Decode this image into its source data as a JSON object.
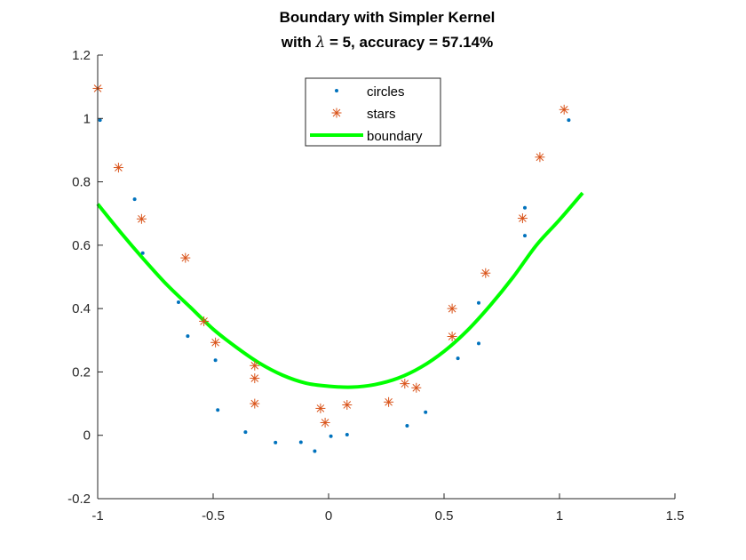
{
  "chart_data": {
    "type": "scatter",
    "title": "Boundary with Simpler Kernel",
    "subtitle_prefix": "with ",
    "subtitle_symbol": "λ",
    "subtitle_suffix": " =  5, accuracy = 57.14%",
    "xlabel": "",
    "ylabel": "",
    "xlim": [
      -1,
      1.5
    ],
    "ylim": [
      -0.2,
      1.2
    ],
    "xticks": [
      -1,
      -0.5,
      0,
      0.5,
      1,
      1.5
    ],
    "xtick_labels": [
      "-1",
      "-0.5",
      "0",
      "0.5",
      "1",
      "1.5"
    ],
    "yticks": [
      -0.2,
      0,
      0.2,
      0.4,
      0.6,
      0.8,
      1,
      1.2
    ],
    "ytick_labels": [
      "-0.2",
      "0",
      "0.2",
      "0.4",
      "0.6",
      "0.8",
      "1",
      "1.2"
    ],
    "grid": false,
    "legend_placement": "top-center",
    "series": [
      {
        "name": "circles",
        "marker": "dot",
        "color": "#0072BD",
        "points": [
          [
            -0.99,
            0.995
          ],
          [
            -0.84,
            0.745
          ],
          [
            -0.805,
            0.575
          ],
          [
            -0.65,
            0.42
          ],
          [
            -0.61,
            0.313
          ],
          [
            -0.49,
            0.237
          ],
          [
            -0.48,
            0.08
          ],
          [
            -0.36,
            0.01
          ],
          [
            -0.23,
            -0.023
          ],
          [
            -0.12,
            -0.022
          ],
          [
            -0.06,
            -0.05
          ],
          [
            0.01,
            -0.003
          ],
          [
            0.08,
            0.002
          ],
          [
            0.34,
            0.03
          ],
          [
            0.42,
            0.073
          ],
          [
            0.56,
            0.243
          ],
          [
            0.65,
            0.29
          ],
          [
            0.65,
            0.418
          ],
          [
            0.85,
            0.63
          ],
          [
            0.85,
            0.718
          ],
          [
            1.04,
            0.995
          ]
        ]
      },
      {
        "name": "stars",
        "marker": "asterisk",
        "color": "#D95319",
        "points": [
          [
            -1.0,
            1.095
          ],
          [
            -0.91,
            0.845
          ],
          [
            -0.81,
            0.683
          ],
          [
            -0.62,
            0.56
          ],
          [
            -0.54,
            0.36
          ],
          [
            -0.49,
            0.293
          ],
          [
            -0.32,
            0.22
          ],
          [
            -0.32,
            0.18
          ],
          [
            -0.32,
            0.1
          ],
          [
            -0.035,
            0.085
          ],
          [
            -0.015,
            0.04
          ],
          [
            0.08,
            0.096
          ],
          [
            0.26,
            0.105
          ],
          [
            0.33,
            0.163
          ],
          [
            0.38,
            0.15
          ],
          [
            0.535,
            0.4
          ],
          [
            0.535,
            0.312
          ],
          [
            0.68,
            0.512
          ],
          [
            0.84,
            0.685
          ],
          [
            0.915,
            0.878
          ],
          [
            1.02,
            1.028
          ]
        ]
      },
      {
        "name": "boundary",
        "type": "line",
        "color": "#00FF00",
        "x": [
          -1.0,
          -0.9,
          -0.8,
          -0.7,
          -0.6,
          -0.5,
          -0.4,
          -0.3,
          -0.2,
          -0.1,
          0.0,
          0.1,
          0.2,
          0.3,
          0.4,
          0.5,
          0.6,
          0.7,
          0.8,
          0.9,
          1.0,
          1.1
        ],
        "y": [
          0.73,
          0.64,
          0.555,
          0.475,
          0.405,
          0.335,
          0.278,
          0.228,
          0.19,
          0.165,
          0.155,
          0.152,
          0.16,
          0.18,
          0.215,
          0.265,
          0.33,
          0.41,
          0.5,
          0.6,
          0.68,
          0.765
        ]
      }
    ],
    "legend": {
      "entries": [
        "circles",
        "stars",
        "boundary"
      ]
    }
  }
}
